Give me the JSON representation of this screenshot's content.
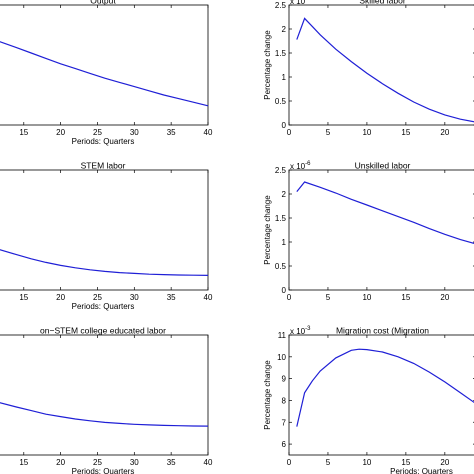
{
  "figure": {
    "background": "#ffffff",
    "line_color": "#1f1fd6"
  },
  "chart_data": [
    {
      "type": "line",
      "title": "Output",
      "xlabel": "Periods: Quarters",
      "ylabel": "",
      "xlim": [
        11.5,
        40
      ],
      "ylim": [
        0,
        1.0
      ],
      "xticks": [
        15,
        20,
        25,
        30,
        35,
        40
      ],
      "yticks": [],
      "exponent": "",
      "series": [
        {
          "x": [
            11.5,
            14,
            16,
            18,
            20,
            22,
            24,
            26,
            28,
            30,
            32,
            34,
            36,
            38,
            40
          ],
          "y": [
            0.7,
            0.645,
            0.6,
            0.555,
            0.51,
            0.47,
            0.43,
            0.39,
            0.355,
            0.32,
            0.285,
            0.25,
            0.22,
            0.19,
            0.16
          ]
        }
      ]
    },
    {
      "type": "line",
      "title": "Skilled labor",
      "xlabel": "",
      "ylabel": "Percentage change",
      "xlim": [
        0,
        24
      ],
      "ylim": [
        0,
        2.5
      ],
      "xticks": [
        0,
        5,
        10,
        15,
        20
      ],
      "yticks": [
        0,
        0.5,
        1,
        1.5,
        2,
        2.5
      ],
      "exponent": "-3",
      "series": [
        {
          "x": [
            1,
            2,
            3,
            4,
            6,
            8,
            10,
            12,
            14,
            16,
            18,
            20,
            22,
            24
          ],
          "y": [
            1.78,
            2.22,
            2.05,
            1.88,
            1.58,
            1.32,
            1.08,
            0.86,
            0.66,
            0.48,
            0.33,
            0.21,
            0.12,
            0.06
          ]
        }
      ]
    },
    {
      "type": "line",
      "title": "STEM labor",
      "xlabel": "Periods: Quarters",
      "ylabel": "",
      "xlim": [
        11.5,
        40
      ],
      "ylim": [
        0,
        1.0
      ],
      "xticks": [
        15,
        20,
        25,
        30,
        35,
        40
      ],
      "yticks": [],
      "exponent": "",
      "series": [
        {
          "x": [
            11.5,
            14,
            16,
            18,
            20,
            22,
            24,
            26,
            28,
            30,
            32,
            34,
            36,
            38,
            40
          ],
          "y": [
            0.34,
            0.295,
            0.26,
            0.23,
            0.205,
            0.185,
            0.168,
            0.155,
            0.145,
            0.138,
            0.132,
            0.128,
            0.125,
            0.123,
            0.122
          ]
        }
      ]
    },
    {
      "type": "line",
      "title": "Unskilled labor",
      "xlabel": "",
      "ylabel": "Percentage change",
      "xlim": [
        0,
        24
      ],
      "ylim": [
        0,
        2.5
      ],
      "xticks": [
        0,
        5,
        10,
        15,
        20
      ],
      "yticks": [
        0,
        0.5,
        1,
        1.5,
        2,
        2.5
      ],
      "exponent": "-6",
      "series": [
        {
          "x": [
            1,
            2,
            4,
            6,
            8,
            10,
            12,
            14,
            16,
            18,
            20,
            22,
            24
          ],
          "y": [
            2.05,
            2.25,
            2.14,
            2.02,
            1.89,
            1.77,
            1.65,
            1.53,
            1.41,
            1.28,
            1.16,
            1.05,
            0.96
          ]
        }
      ]
    },
    {
      "type": "line",
      "title": "on−STEM college educated labor",
      "xlabel": "Periods: Quarters",
      "ylabel": "",
      "xlim": [
        11.5,
        40
      ],
      "ylim": [
        0,
        1.0
      ],
      "xticks": [
        15,
        20,
        25,
        30,
        35,
        40
      ],
      "yticks": [],
      "exponent": "",
      "series": [
        {
          "x": [
            11.5,
            14,
            16,
            18,
            20,
            22,
            24,
            26,
            28,
            30,
            32,
            34,
            36,
            38,
            40
          ],
          "y": [
            0.44,
            0.4,
            0.37,
            0.34,
            0.32,
            0.3,
            0.285,
            0.272,
            0.263,
            0.256,
            0.251,
            0.247,
            0.244,
            0.242,
            0.241
          ]
        }
      ]
    },
    {
      "type": "line",
      "title": "Migration cost (Migration",
      "xlabel": "Periods: Quarters",
      "ylabel": "Percentage change",
      "xlim": [
        0,
        24
      ],
      "ylim": [
        5.5,
        11
      ],
      "xticks": [
        0,
        5,
        10,
        15,
        20
      ],
      "yticks": [
        6,
        7,
        8,
        9,
        10,
        11
      ],
      "exponent": "-3",
      "series": [
        {
          "x": [
            1,
            2,
            3,
            4,
            6,
            8,
            9,
            10,
            12,
            14,
            16,
            18,
            20,
            22,
            24
          ],
          "y": [
            6.8,
            8.35,
            8.9,
            9.35,
            9.95,
            10.3,
            10.35,
            10.33,
            10.22,
            10.0,
            9.7,
            9.3,
            8.85,
            8.35,
            7.85
          ]
        }
      ]
    }
  ]
}
